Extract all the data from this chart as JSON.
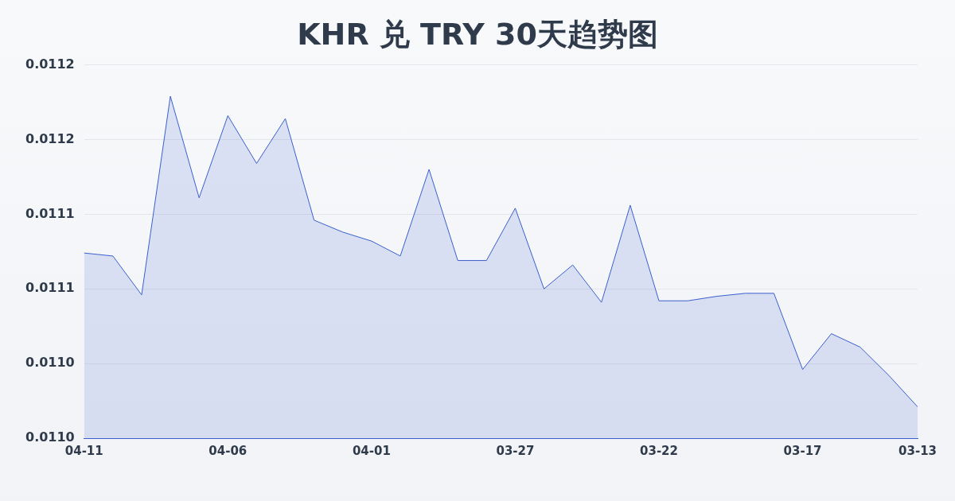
{
  "chart_data": {
    "type": "area",
    "title": "KHR 兑 TRY 30天趋势图",
    "categories": [
      "04-11",
      null,
      null,
      null,
      null,
      "04-06",
      null,
      null,
      null,
      null,
      "04-01",
      null,
      null,
      null,
      null,
      "03-27",
      null,
      null,
      null,
      null,
      "03-22",
      null,
      null,
      null,
      null,
      "03-17",
      null,
      null,
      null,
      "03-13"
    ],
    "series": [
      {
        "color": "#3a5fcd",
        "values": [
          0.011084,
          0.011082,
          0.011056,
          0.011189,
          0.011121,
          0.011176,
          0.011144,
          0.011174,
          0.011106,
          0.011098,
          0.011092,
          0.011082,
          0.01114,
          0.011079,
          0.011079,
          0.011114,
          0.01106,
          0.011076,
          0.011051,
          0.011116,
          0.011052,
          0.011052,
          0.011055,
          0.011057,
          0.011057,
          0.011006,
          0.01103,
          0.011021,
          0.011002,
          0.010981
        ]
      }
    ],
    "ylim": [
      0.01096,
      0.01121
    ],
    "yticks": [
      {
        "value": 0.01096,
        "label": "0.0110"
      },
      {
        "value": 0.01101,
        "label": "0.0110"
      },
      {
        "value": 0.01106,
        "label": "0.0111"
      },
      {
        "value": 0.01111,
        "label": "0.0111"
      },
      {
        "value": 0.01116,
        "label": "0.0112"
      },
      {
        "value": 0.01121,
        "label": "0.0112"
      }
    ],
    "grid": "y",
    "legend": false,
    "marker": "none",
    "line_style": "solid"
  }
}
